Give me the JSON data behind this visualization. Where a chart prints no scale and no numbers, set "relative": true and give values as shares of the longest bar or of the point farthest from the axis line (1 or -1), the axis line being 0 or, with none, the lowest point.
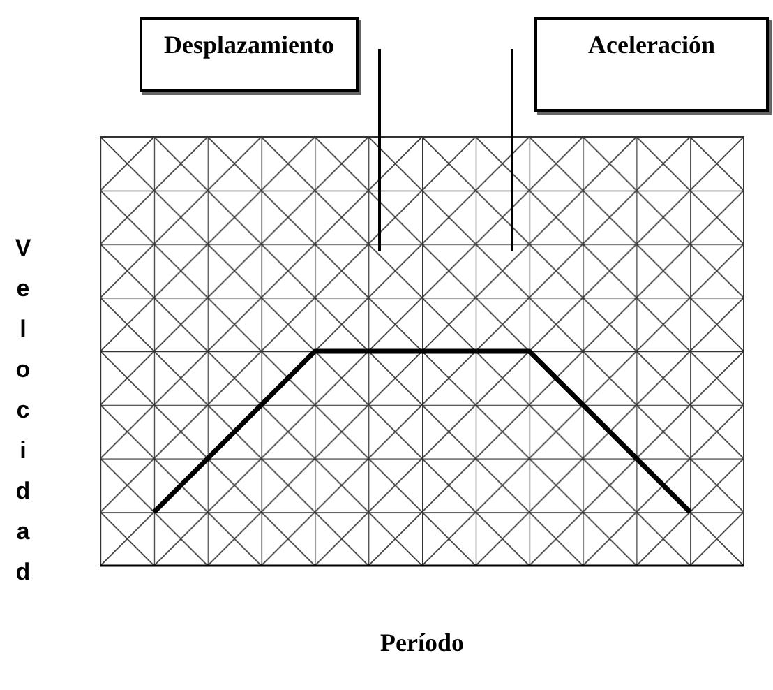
{
  "chart_data": {
    "type": "line",
    "xlabel": "Período",
    "ylabel": "Velocidad",
    "annotations": [
      "Desplazamiento",
      "Aceleración"
    ],
    "categories": [
      null,
      null,
      null,
      null,
      null,
      null,
      null,
      null,
      null,
      null,
      null
    ],
    "series": [
      {
        "color": "#000000",
        "values": [
          0.25,
          0.5,
          0.75,
          1,
          1,
          1,
          1,
          1,
          0.75,
          0.5,
          0.25
        ]
      }
    ],
    "relative": true,
    "marker": "none",
    "legend": false
  }
}
